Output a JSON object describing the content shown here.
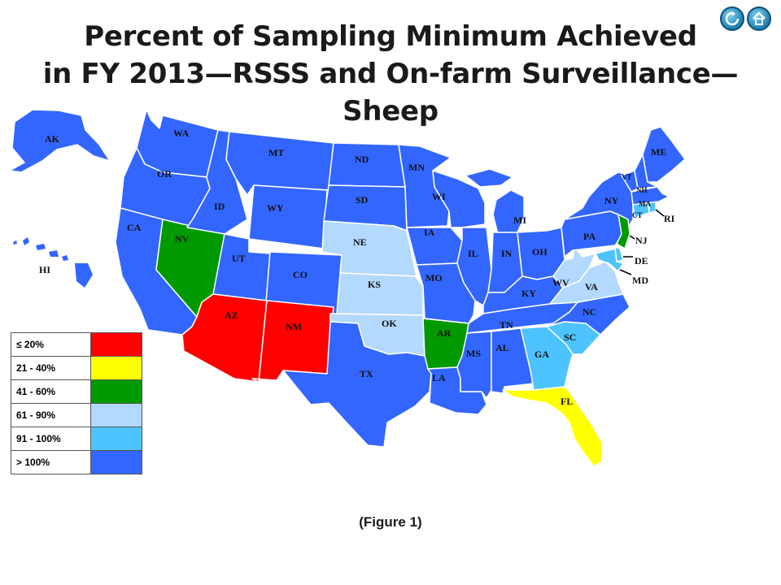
{
  "title_line1": "Percent of Sampling Minimum Achieved",
  "title_line2": "in FY 2013—RSSS and On-farm Surveillance—Sheep",
  "nav": [
    {
      "icon": "refresh-icon"
    },
    {
      "icon": "home-icon"
    }
  ],
  "legend": [
    {
      "label": "≤ 20%",
      "color": "#ff0000"
    },
    {
      "label": "21 - 40%",
      "color": "#ffff00"
    },
    {
      "label": "41 - 60%",
      "color": "#009a00"
    },
    {
      "label": "61 -  90%",
      "color": "#b3d9ff"
    },
    {
      "label": "91 - 100%",
      "color": "#4dc3ff"
    },
    {
      "label": "> 100%",
      "color": "#3366ff"
    }
  ],
  "figure_caption": "(Figure 1)",
  "states": [
    {
      "code": "AK",
      "category": 5
    },
    {
      "code": "HI",
      "category": 5
    },
    {
      "code": "WA",
      "category": 5
    },
    {
      "code": "OR",
      "category": 5
    },
    {
      "code": "CA",
      "category": 5
    },
    {
      "code": "NV",
      "category": 2
    },
    {
      "code": "ID",
      "category": 5
    },
    {
      "code": "MT",
      "category": 5
    },
    {
      "code": "WY",
      "category": 5
    },
    {
      "code": "UT",
      "category": 5
    },
    {
      "code": "CO",
      "category": 5
    },
    {
      "code": "AZ",
      "category": 0
    },
    {
      "code": "NM",
      "category": 0
    },
    {
      "code": "ND",
      "category": 5
    },
    {
      "code": "SD",
      "category": 5
    },
    {
      "code": "NE",
      "category": 3
    },
    {
      "code": "KS",
      "category": 3
    },
    {
      "code": "OK",
      "category": 3
    },
    {
      "code": "TX",
      "category": 5
    },
    {
      "code": "MN",
      "category": 5
    },
    {
      "code": "IA",
      "category": 5
    },
    {
      "code": "MO",
      "category": 5
    },
    {
      "code": "AR",
      "category": 2
    },
    {
      "code": "LA",
      "category": 5
    },
    {
      "code": "WI",
      "category": 5
    },
    {
      "code": "IL",
      "category": 5
    },
    {
      "code": "MI",
      "category": 5
    },
    {
      "code": "IN",
      "category": 5
    },
    {
      "code": "OH",
      "category": 5
    },
    {
      "code": "KY",
      "category": 5
    },
    {
      "code": "TN",
      "category": 5
    },
    {
      "code": "MS",
      "category": 5
    },
    {
      "code": "AL",
      "category": 5
    },
    {
      "code": "GA",
      "category": 4
    },
    {
      "code": "FL",
      "category": 1
    },
    {
      "code": "SC",
      "category": 4
    },
    {
      "code": "NC",
      "category": 5
    },
    {
      "code": "VA",
      "category": 3
    },
    {
      "code": "WV",
      "category": 3
    },
    {
      "code": "PA",
      "category": 5
    },
    {
      "code": "NY",
      "category": 5
    },
    {
      "code": "NJ",
      "category": 2
    },
    {
      "code": "DE",
      "category": 4
    },
    {
      "code": "MD",
      "category": 4
    },
    {
      "code": "CT",
      "category": 4
    },
    {
      "code": "RI",
      "category": 4
    },
    {
      "code": "MA",
      "category": 5
    },
    {
      "code": "VT",
      "category": 5
    },
    {
      "code": "NH",
      "category": 5
    },
    {
      "code": "ME",
      "category": 5
    }
  ]
}
